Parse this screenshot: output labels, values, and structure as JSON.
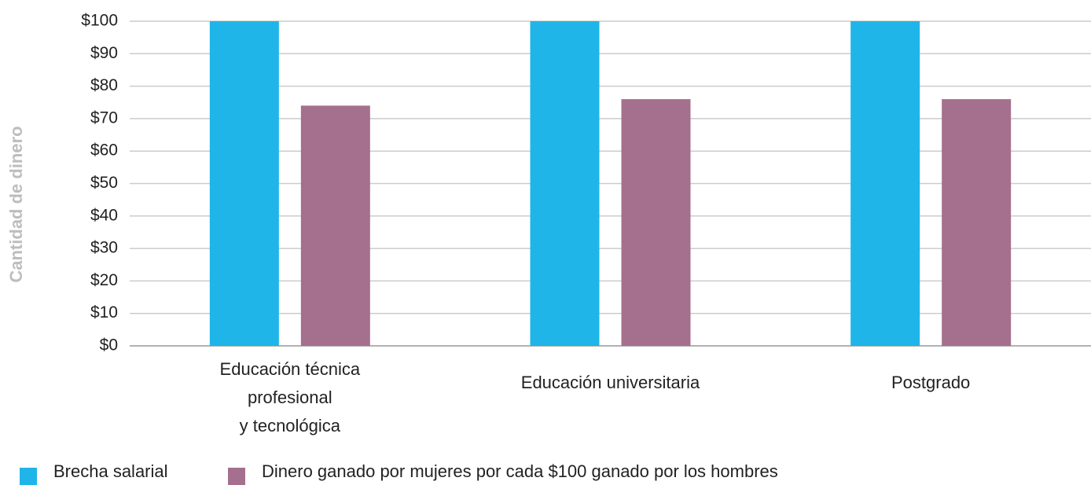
{
  "chart_data": {
    "type": "bar",
    "y_label": "Cantidad de dinero",
    "categories": [
      "Educación técnica\nprofesional\ny tecnológica",
      "Educación universitaria",
      "Postgrado"
    ],
    "series": [
      {
        "name": "Brecha salarial",
        "color": "#1fb5e9",
        "values": [
          100,
          100,
          100
        ]
      },
      {
        "name": "Dinero ganado por mujeres por cada $100 ganado por los hombres",
        "color": "#a5708d",
        "values": [
          74,
          76,
          76
        ]
      }
    ],
    "ylim": [
      0,
      100
    ],
    "yticks": [
      {
        "value": 0,
        "label": "$0"
      },
      {
        "value": 10,
        "label": "$10"
      },
      {
        "value": 20,
        "label": "$20"
      },
      {
        "value": 30,
        "label": "$30"
      },
      {
        "value": 40,
        "label": "$40"
      },
      {
        "value": 50,
        "label": "$50"
      },
      {
        "value": 60,
        "label": "$60"
      },
      {
        "value": 70,
        "label": "$70"
      },
      {
        "value": 80,
        "label": "$80"
      },
      {
        "value": 90,
        "label": "$90"
      },
      {
        "value": 100,
        "label": "$100"
      }
    ],
    "grid": true,
    "legend": "bottom"
  }
}
